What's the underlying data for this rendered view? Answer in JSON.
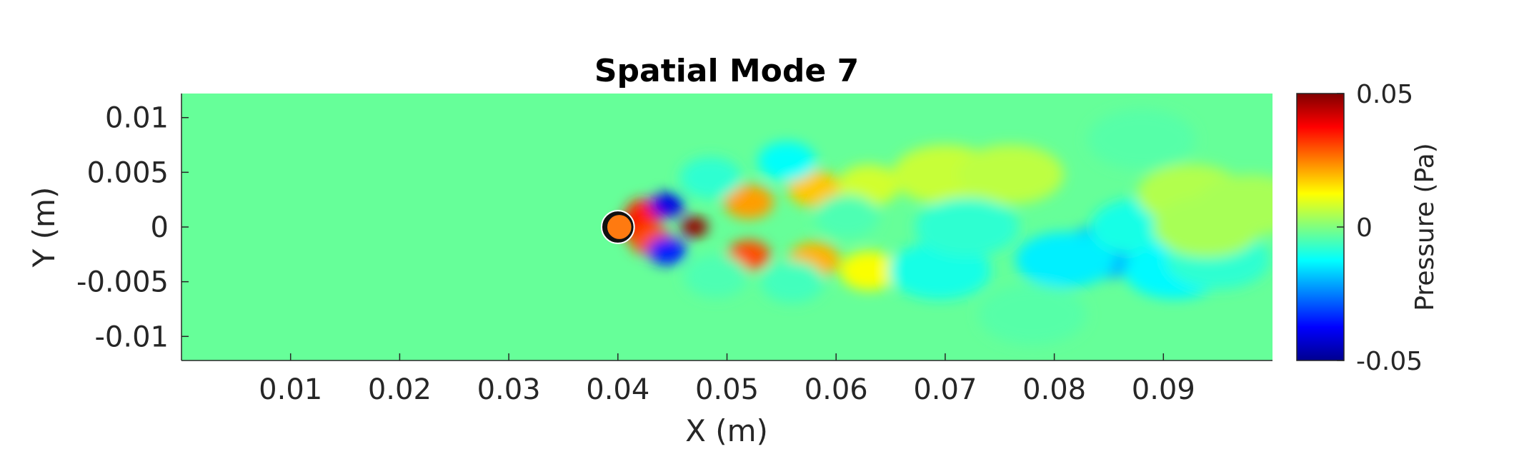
{
  "chart_data": {
    "type": "heatmap",
    "title": "Spatial Mode 7",
    "xlabel": "X (m)",
    "ylabel": "Y (m)",
    "xlim": [
      0,
      0.1
    ],
    "ylim": [
      -0.0122,
      0.0122
    ],
    "x_ticks": [
      0.01,
      0.02,
      0.03,
      0.04,
      0.05,
      0.06,
      0.07,
      0.08,
      0.09
    ],
    "x_tick_labels": [
      "0.01",
      "0.02",
      "0.03",
      "0.04",
      "0.05",
      "0.06",
      "0.07",
      "0.08",
      "0.09"
    ],
    "y_ticks": [
      0.01,
      0.005,
      0,
      -0.005,
      -0.01
    ],
    "y_tick_labels": [
      "0.01",
      "0.005",
      "0",
      "-0.005",
      "-0.01"
    ],
    "colorbar": {
      "label": "Pressure (Pa)",
      "colormap": "jet",
      "clim": [
        -0.05,
        0.05
      ],
      "ticks": [
        0.05,
        0,
        -0.05
      ],
      "tick_labels": [
        "0.05",
        "0",
        "-0.05"
      ]
    },
    "cylinder": {
      "x": 0.04,
      "y": 0,
      "radius": 0.0013
    },
    "field_features": [
      {
        "x": 0.047,
        "y": 0.0,
        "value": 0.048
      },
      {
        "x": 0.0415,
        "y": 0.0001,
        "value": 0.04
      },
      {
        "x": 0.0425,
        "y": 0.0013,
        "value": 0.035
      },
      {
        "x": 0.043,
        "y": -0.0012,
        "value": 0.03
      },
      {
        "x": 0.0445,
        "y": 0.002,
        "value": -0.04
      },
      {
        "x": 0.0445,
        "y": -0.0022,
        "value": -0.035
      },
      {
        "x": 0.052,
        "y": -0.0026,
        "value": 0.03
      },
      {
        "x": 0.052,
        "y": 0.0023,
        "value": 0.022
      },
      {
        "x": 0.058,
        "y": 0.0035,
        "value": 0.018
      },
      {
        "x": 0.058,
        "y": -0.003,
        "value": 0.02
      },
      {
        "x": 0.063,
        "y": -0.004,
        "value": 0.012
      },
      {
        "x": 0.063,
        "y": 0.0038,
        "value": 0.008
      },
      {
        "x": 0.0485,
        "y": 0.0045,
        "value": -0.008
      },
      {
        "x": 0.049,
        "y": -0.0045,
        "value": -0.005
      },
      {
        "x": 0.0555,
        "y": 0.006,
        "value": -0.012
      },
      {
        "x": 0.056,
        "y": -0.005,
        "value": -0.006
      },
      {
        "x": 0.061,
        "y": 0.001,
        "value": -0.005
      },
      {
        "x": 0.07,
        "y": 0.0048,
        "value": 0.007
      },
      {
        "x": 0.076,
        "y": 0.0048,
        "value": 0.006
      },
      {
        "x": 0.0695,
        "y": -0.004,
        "value": -0.01
      },
      {
        "x": 0.072,
        "y": 0.0,
        "value": -0.008
      },
      {
        "x": 0.0845,
        "y": -0.0023,
        "value": -0.02
      },
      {
        "x": 0.081,
        "y": -0.003,
        "value": -0.014
      },
      {
        "x": 0.088,
        "y": 0.0,
        "value": -0.01
      },
      {
        "x": 0.091,
        "y": -0.004,
        "value": -0.013
      },
      {
        "x": 0.095,
        "y": -0.003,
        "value": -0.008
      },
      {
        "x": 0.0925,
        "y": 0.003,
        "value": 0.005
      },
      {
        "x": 0.094,
        "y": 0.0,
        "value": 0.004
      },
      {
        "x": 0.098,
        "y": 0.002,
        "value": 0.004
      },
      {
        "x": 0.078,
        "y": -0.008,
        "value": -0.004
      },
      {
        "x": 0.088,
        "y": 0.008,
        "value": -0.004
      }
    ]
  }
}
